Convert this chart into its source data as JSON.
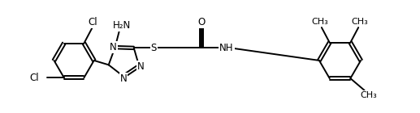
{
  "bg_color": "#ffffff",
  "line_color": "#000000",
  "line_width": 1.4,
  "font_size": 8.5,
  "fig_width": 5.17,
  "fig_height": 1.4,
  "dpi": 100,
  "xlim": [
    0,
    10.5
  ],
  "ylim": [
    0,
    2.8
  ]
}
